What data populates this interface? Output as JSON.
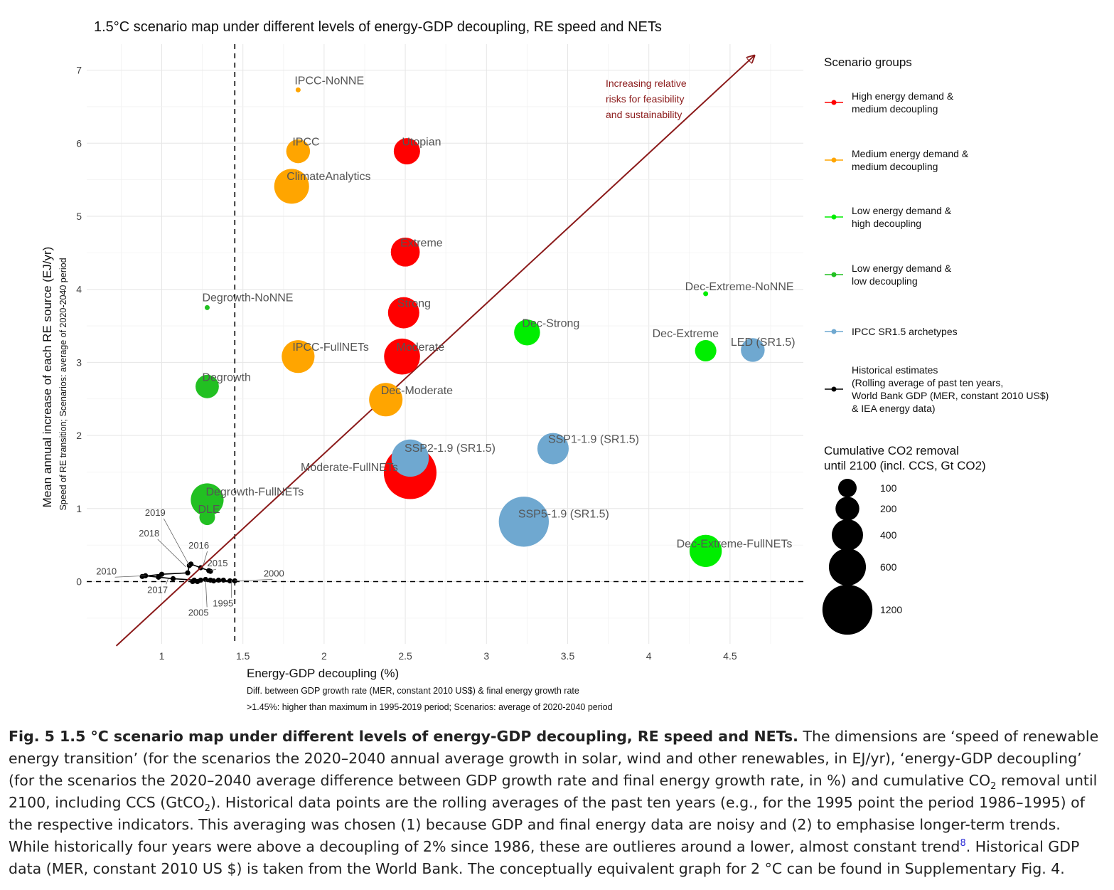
{
  "chart_data": {
    "type": "scatter",
    "title": "1.5°C scenario map under different levels of energy-GDP decoupling, RE speed and NETs",
    "xlabel": "Energy-GDP decoupling (%)",
    "xlabel_sub1": "Diff. between GDP growth rate (MER, constant 2010 US$) & final energy growth rate",
    "xlabel_sub2": ">1.45%: higher than maximum in 1995-2019 period; Scenarios: average of 2020-2040 period",
    "ylabel": "Mean annual increase of each RE source (EJ/yr)",
    "ylabel_sub": "Speed of RE transition; Scenarios: average of 2020-2040 period",
    "xlim": [
      0.55,
      4.95
    ],
    "ylim": [
      -0.85,
      7.4
    ],
    "x_ticks": [
      "1",
      "1.5",
      "2",
      "2.5",
      "3",
      "3.5",
      "4",
      "4.5"
    ],
    "y_ticks": [
      "0",
      "1",
      "2",
      "3",
      "4",
      "5",
      "6",
      "7"
    ],
    "vline_x": 1.45,
    "hline_y": 0,
    "grid": true,
    "arrow": {
      "from": [
        0.72,
        -0.88
      ],
      "to": [
        4.65,
        7.2
      ],
      "color": "#8b1a1a"
    },
    "arrow_label": [
      "Increasing relative",
      "risks for feasibility",
      "and sustainability"
    ],
    "groups": [
      {
        "key": "high_med",
        "label": [
          "High energy demand &",
          "medium decoupling"
        ],
        "color": "#ff0000"
      },
      {
        "key": "med_med",
        "label": [
          "Medium energy demand &",
          "medium decoupling"
        ],
        "color": "#ffa500"
      },
      {
        "key": "low_high",
        "label": [
          "Low energy demand &",
          "high decoupling"
        ],
        "color": "#00ee00"
      },
      {
        "key": "low_low",
        "label": [
          "Low energy demand &",
          "low decoupling"
        ],
        "color": "#22c022"
      },
      {
        "key": "ipcc",
        "label": [
          "IPCC SR1.5 archetypes"
        ],
        "color": "#6fa8d0"
      },
      {
        "key": "hist",
        "label": [
          "Historical estimates",
          "(Rolling average of past ten years,",
          "World Bank GDP (MER, constant 2010 US$)",
          "& IEA energy data)"
        ],
        "color": "#000000"
      }
    ],
    "legend_title": "Scenario groups",
    "size_legend_title": [
      "Cumulative CO2 removal",
      "until 2100 (incl. CCS, Gt CO2)"
    ],
    "size_legend": [
      100,
      200,
      400,
      600,
      1200
    ],
    "points": [
      {
        "name": "IPCC-NoNNE",
        "x": 1.84,
        "y": 6.73,
        "co2": 0,
        "group": "med_med"
      },
      {
        "name": "IPCC",
        "x": 1.84,
        "y": 5.89,
        "co2": 200,
        "group": "med_med"
      },
      {
        "name": "Utopian",
        "x": 2.51,
        "y": 5.89,
        "co2": 260,
        "group": "high_med"
      },
      {
        "name": "ClimateAnalytics",
        "x": 1.8,
        "y": 5.41,
        "co2": 520,
        "group": "med_med"
      },
      {
        "name": "Extreme",
        "x": 2.5,
        "y": 4.51,
        "co2": 330,
        "group": "high_med"
      },
      {
        "name": "Strong",
        "x": 2.49,
        "y": 3.68,
        "co2": 400,
        "group": "high_med"
      },
      {
        "name": "Moderate",
        "x": 2.48,
        "y": 3.08,
        "co2": 560,
        "group": "high_med"
      },
      {
        "name": "Moderate-FullNETs",
        "x": 2.53,
        "y": 1.49,
        "co2": 1350,
        "group": "high_med"
      },
      {
        "name": "IPCC-FullNETs",
        "x": 1.84,
        "y": 3.08,
        "co2": 450,
        "group": "med_med"
      },
      {
        "name": "Dec-Moderate",
        "x": 2.38,
        "y": 2.49,
        "co2": 470,
        "group": "med_med"
      },
      {
        "name": "Dec-Extreme-NoNNE",
        "x": 4.35,
        "y": 3.94,
        "co2": 0,
        "group": "low_high"
      },
      {
        "name": "Dec-Strong",
        "x": 3.25,
        "y": 3.41,
        "co2": 250,
        "group": "low_high"
      },
      {
        "name": "Dec-Extreme",
        "x": 4.35,
        "y": 3.16,
        "co2": 150,
        "group": "low_high"
      },
      {
        "name": "Dec-Extreme-FullNETs",
        "x": 4.35,
        "y": 0.42,
        "co2": 430,
        "group": "low_high"
      },
      {
        "name": "Degrowth-NoNNE",
        "x": 1.28,
        "y": 3.75,
        "co2": 0,
        "group": "low_low"
      },
      {
        "name": "Degrowth",
        "x": 1.28,
        "y": 2.67,
        "co2": 190,
        "group": "low_low"
      },
      {
        "name": "Degrowth-FullNETs",
        "x": 1.28,
        "y": 1.12,
        "co2": 450,
        "group": "low_low"
      },
      {
        "name": "DLE",
        "x": 1.28,
        "y": 0.88,
        "co2": 60,
        "group": "low_low"
      },
      {
        "name": "LED (SR1.5)",
        "x": 4.64,
        "y": 3.17,
        "co2": 200,
        "group": "ipcc"
      },
      {
        "name": "SSP2-1.9 (SR1.5)",
        "x": 2.53,
        "y": 1.69,
        "co2": 610,
        "group": "ipcc"
      },
      {
        "name": "SSP1-1.9 (SR1.5)",
        "x": 3.41,
        "y": 1.82,
        "co2": 400,
        "group": "ipcc"
      },
      {
        "name": "SSP5-1.9 (SR1.5)",
        "x": 3.23,
        "y": 0.82,
        "co2": 1200,
        "group": "ipcc"
      }
    ],
    "historical": {
      "labels": [
        {
          "year": "2019",
          "x": 1.17,
          "y": 0.22
        },
        {
          "year": "2018",
          "x": 1.15,
          "y": 0.2
        },
        {
          "year": "2016",
          "x": 1.25,
          "y": 0.18
        },
        {
          "year": "2015",
          "x": 1.3,
          "y": 0.15
        },
        {
          "year": "2010",
          "x": 0.9,
          "y": 0.08
        },
        {
          "year": "2017",
          "x": 1.04,
          "y": 0.04
        },
        {
          "year": "2000",
          "x": 1.45,
          "y": 0.01
        },
        {
          "year": "2005",
          "x": 1.27,
          "y": 0.02
        },
        {
          "year": "1995",
          "x": 1.43,
          "y": 0.02
        }
      ],
      "path": [
        [
          1.45,
          0.01
        ],
        [
          1.42,
          0.01
        ],
        [
          1.38,
          0.02
        ],
        [
          1.35,
          0.02
        ],
        [
          1.32,
          0.01
        ],
        [
          1.3,
          0.02
        ],
        [
          1.27,
          0.03
        ],
        [
          1.24,
          0.02
        ],
        [
          1.2,
          0.01
        ],
        [
          1.19,
          0.0
        ],
        [
          1.22,
          0.0
        ],
        [
          1.2,
          0.02
        ],
        [
          1.07,
          0.04
        ],
        [
          0.98,
          0.06
        ],
        [
          0.9,
          0.08
        ],
        [
          0.88,
          0.07
        ],
        [
          1.0,
          0.1
        ],
        [
          1.16,
          0.12
        ],
        [
          1.17,
          0.22
        ],
        [
          1.18,
          0.24
        ],
        [
          1.24,
          0.19
        ],
        [
          1.29,
          0.15
        ],
        [
          1.3,
          0.14
        ]
      ]
    }
  },
  "caption": {
    "label": "Fig. 5 1.5 °C scenario map under different levels of energy-GDP decoupling, RE speed and NETs.",
    "text_1": " The dimensions are ‘speed of renewable energy transition’ (for the scenarios the 2020–2040 annual average growth in solar, wind and other renewables, in EJ/yr), ‘energy-GDP decoupling’ (for the scenarios the 2020–2040 average difference between GDP growth rate and final energy growth rate, in %) and cumulative CO",
    "sub_1": "2",
    "text_2": " removal until 2100, including CCS (GtCO",
    "sub_2": "2",
    "text_3": "). Historical data points are the rolling averages of the past ten years (e.g., for the 1995 point the period 1986–1995) of the respective indicators. This averaging was chosen (1) because GDP and final energy data are noisy and (2) to emphasise longer-term trends. While historically four years were above a decoupling of 2% since 1986, these are outlieres around a lower, almost constant trend",
    "ref": "8",
    "text_4": ". Historical GDP data (MER, constant 2010 US $) is taken from the World Bank. The conceptually equivalent graph for 2 °C can be found in Supplementary Fig. 4."
  }
}
